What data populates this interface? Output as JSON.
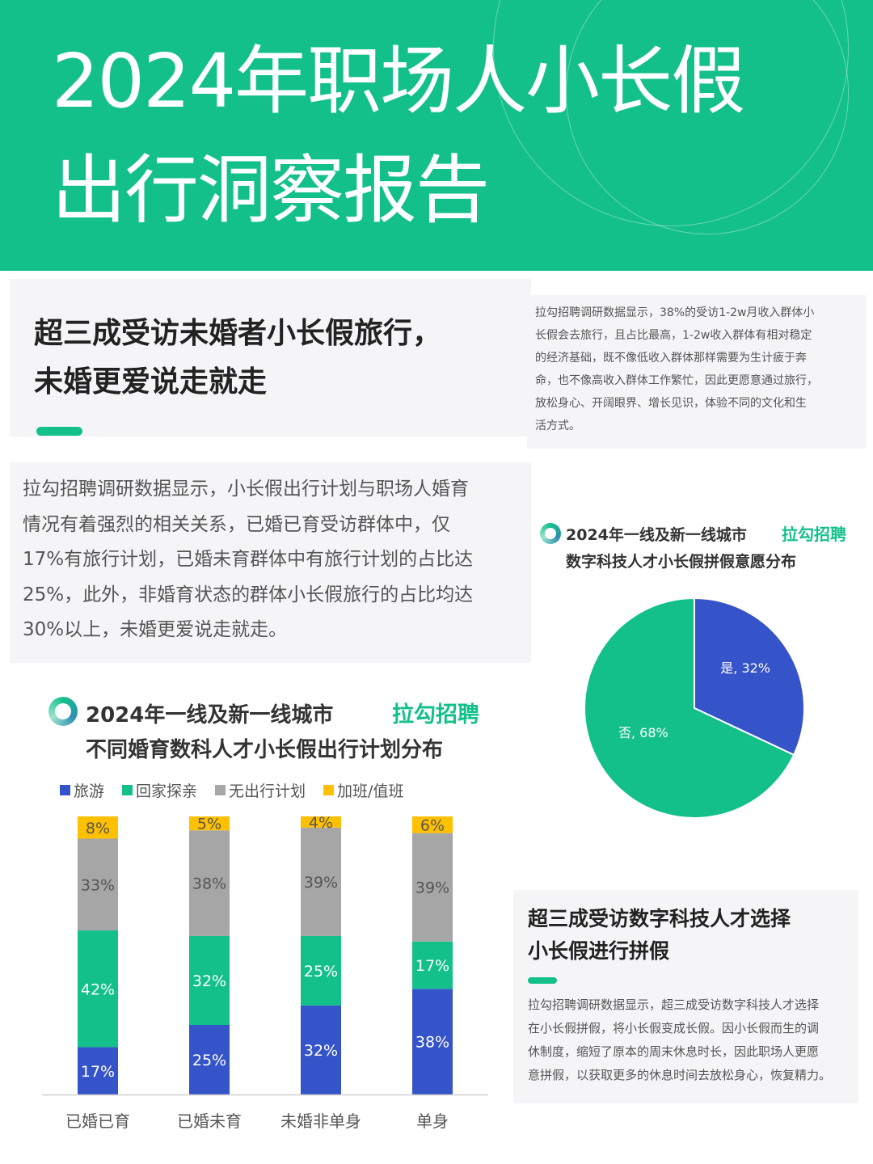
{
  "header": {
    "title_line1": "2024年职场人小长假",
    "title_line2": "出行洞察报告",
    "bg_color": "#14c08a"
  },
  "section1": {
    "headline_line1": "超三成受访未婚者小长假旅行，",
    "headline_line2": "未婚更爱说走就走"
  },
  "side_note": {
    "lines": [
      "拉勾招聘调研数据显示，38%的受访1-2w月收入群体小",
      "长假会去旅行，且占比最高，1-2w收入群体有相对稳定",
      "的经济基础，既不像低收入群体那样需要为生计疲于奔",
      "命，也不像高收入群体工作繁忙，因此更愿意通过旅行，",
      "放松身心、开阔眼界、增长见识，体验不同的文化和生",
      "活方式。"
    ]
  },
  "main_para": {
    "lines": [
      "拉勾招聘调研数据显示，小长假出行计划与职场人婚育",
      "情况有着强烈的相关关系，已婚已育受访群体中，仅",
      "17%有旅行计划，已婚未育群体中有旅行计划的占比达",
      "25%，此外，非婚育状态的群体小长假旅行的占比均达",
      "30%以上，未婚更爱说走就走。"
    ]
  },
  "pie_section": {
    "title_line1": "2024年一线及新一线城市",
    "title_line2": "数字科技人才小长假拼假意愿分布",
    "brand": "拉勾招聘"
  },
  "bar_section": {
    "title_line1": "2024年一线及新一线城市",
    "title_line2": "不同婚育数科人才小长假出行计划分布",
    "brand": "拉勾招聘"
  },
  "section2": {
    "headline_line1": "超三成受访数字科技人才选择",
    "headline_line2": "小长假进行拼假",
    "lines": [
      "拉勾招聘调研数据显示，超三成受访数字科技人才选择",
      "在小长假拼假，将小长假变成长假。因小长假而生的调",
      "休制度，缩短了原本的周末休息时长，因此职场人更愿",
      "意拼假，以获取更多的休息时间去放松身心，恢复精力。"
    ]
  },
  "chart_data": [
    {
      "type": "bar",
      "stacked": true,
      "categories": [
        "已婚已育",
        "已婚未育",
        "未婚非单身",
        "单身"
      ],
      "series": [
        {
          "name": "旅游",
          "color": "#3654c9",
          "values": [
            17,
            25,
            32,
            38
          ]
        },
        {
          "name": "回家探亲",
          "color": "#14c08a",
          "values": [
            42,
            32,
            25,
            17
          ]
        },
        {
          "name": "无出行计划",
          "color": "#a6a6a6",
          "values": [
            33,
            38,
            39,
            39
          ]
        },
        {
          "name": "加班/值班",
          "color": "#ffc000",
          "values": [
            8,
            5,
            4,
            6
          ]
        }
      ],
      "legend": "top-left",
      "grid": false
    },
    {
      "type": "pie",
      "slices": [
        {
          "label": "是",
          "value": 32,
          "color": "#3654c9"
        },
        {
          "label": "否",
          "value": 68,
          "color": "#14c08a"
        }
      ]
    }
  ]
}
